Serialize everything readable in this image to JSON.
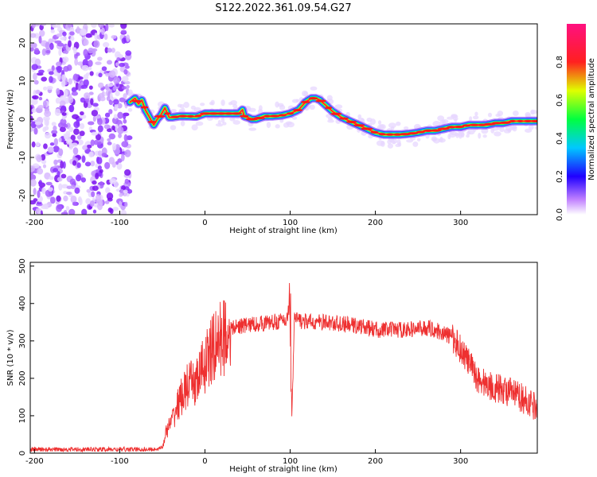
{
  "title": "S122.2022.361.09.54.G27",
  "chart_data": [
    {
      "type": "heatmap",
      "xlabel": "Height of straight line (km)",
      "ylabel": "Frequency (Hz)",
      "xlim": [
        -205,
        390
      ],
      "ylim": [
        -25,
        25
      ],
      "xticks": [
        "-200",
        "-100",
        "0",
        "100",
        "200",
        "300"
      ],
      "yticks": [
        "20",
        "10",
        "0",
        "-10",
        "-20"
      ],
      "colorbar": {
        "label": "Normalized spectral amplitude",
        "range": [
          0,
          1
        ],
        "ticks": [
          "0.0",
          "0.2",
          "0.4",
          "0.6",
          "0.8"
        ]
      },
      "noise_region_x": [
        -205,
        -88
      ],
      "signal_ridge": {
        "x": [
          -88,
          -82,
          -78,
          -74,
          -70,
          -65,
          -60,
          -56,
          -52,
          -47,
          -45,
          -42,
          -38,
          -30,
          -20,
          -10,
          0,
          10,
          20,
          30,
          40,
          44,
          46,
          50,
          55,
          60,
          70,
          80,
          90,
          100,
          110,
          118,
          125,
          130,
          135,
          140,
          145,
          150,
          160,
          170,
          180,
          190,
          200,
          210,
          220,
          230,
          240,
          250,
          260,
          270,
          280,
          290,
          300,
          310,
          320,
          330,
          340,
          350,
          360,
          370,
          380,
          390
        ],
        "freq_hz": [
          4.5,
          5.5,
          4.0,
          5.0,
          2.5,
          0.5,
          -1.5,
          0.0,
          1.0,
          3.0,
          2.0,
          0.5,
          0.5,
          0.8,
          0.8,
          0.7,
          1.5,
          1.5,
          1.5,
          1.5,
          1.5,
          2.5,
          0.8,
          0.5,
          0.0,
          0.0,
          0.8,
          0.8,
          1.0,
          1.5,
          2.5,
          4.5,
          5.5,
          5.5,
          5.0,
          4.0,
          3.0,
          2.0,
          0.5,
          -0.5,
          -1.5,
          -2.5,
          -3.5,
          -4.0,
          -4.0,
          -4.0,
          -3.8,
          -3.5,
          -3.0,
          -3.0,
          -2.5,
          -2.0,
          -2.0,
          -1.5,
          -1.5,
          -1.5,
          -1.0,
          -1.0,
          -0.5,
          -0.5,
          -0.5,
          -0.5
        ]
      }
    },
    {
      "type": "line",
      "xlabel": "Height of straight line (km)",
      "ylabel": "SNR (10 * v/v)",
      "xlim": [
        -205,
        390
      ],
      "ylim": [
        0,
        510
      ],
      "xticks": [
        "-200",
        "-100",
        "0",
        "100",
        "200",
        "300"
      ],
      "yticks": [
        "500",
        "400",
        "300",
        "200",
        "100",
        "0"
      ],
      "color": "#ee3030",
      "series": [
        {
          "x": [
            -205,
            -150,
            -100,
            -60,
            -50,
            -45,
            -40,
            -30,
            -20,
            -10,
            0,
            10,
            20,
            30,
            40,
            60,
            80,
            95,
            98,
            100,
            102,
            105,
            110,
            120,
            140,
            160,
            180,
            200,
            220,
            240,
            260,
            270,
            280,
            290,
            300,
            310,
            320,
            330,
            340,
            350,
            360,
            370,
            380,
            390
          ],
          "values": [
            10,
            10,
            10,
            10,
            15,
            60,
            80,
            140,
            180,
            190,
            240,
            280,
            310,
            330,
            340,
            345,
            350,
            355,
            380,
            420,
            95,
            360,
            355,
            350,
            350,
            345,
            340,
            330,
            330,
            330,
            335,
            330,
            320,
            310,
            280,
            240,
            200,
            185,
            175,
            170,
            160,
            150,
            135,
            125
          ]
        }
      ]
    }
  ]
}
